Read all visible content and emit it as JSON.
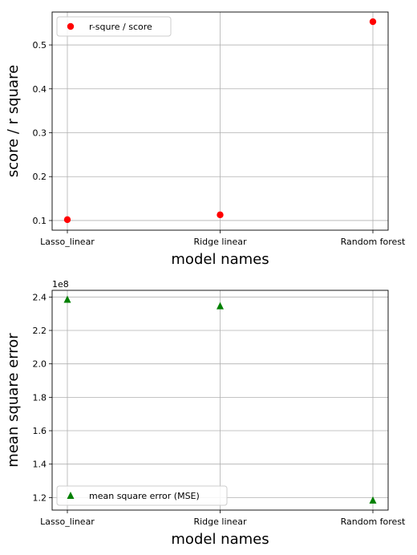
{
  "chart_data": [
    {
      "type": "scatter",
      "categories": [
        "Lasso_linear",
        "Ridge linear",
        "Random forest"
      ],
      "series": [
        {
          "name": "r-squre / score",
          "values": [
            0.102,
            0.113,
            0.553
          ],
          "marker": "circle",
          "color": "#ff0000"
        }
      ],
      "xlabel": "model names",
      "ylabel": "score / r square",
      "ylim": [
        0.078,
        0.575
      ],
      "yticks": [
        0.1,
        0.2,
        0.3,
        0.4,
        0.5
      ],
      "ytick_labels": [
        "0.1",
        "0.2",
        "0.3",
        "0.4",
        "0.5"
      ],
      "offset_text": "",
      "grid": true,
      "legend_position": "top-left"
    },
    {
      "type": "scatter",
      "categories": [
        "Lasso_linear",
        "Ridge linear",
        "Random forest"
      ],
      "series": [
        {
          "name": "mean square error (MSE)",
          "values": [
            2.385,
            2.346,
            1.183
          ],
          "marker": "triangle",
          "color": "#008000"
        }
      ],
      "xlabel": "model names",
      "ylabel": "mean square error",
      "ylim": [
        1.125,
        2.44
      ],
      "yticks": [
        1.2,
        1.4,
        1.6,
        1.8,
        2.0,
        2.2,
        2.4
      ],
      "ytick_labels": [
        "1.2",
        "1.4",
        "1.6",
        "1.8",
        "2.0",
        "2.2",
        "2.4"
      ],
      "offset_text": "1e8",
      "grid": true,
      "legend_position": "bottom-left"
    }
  ]
}
